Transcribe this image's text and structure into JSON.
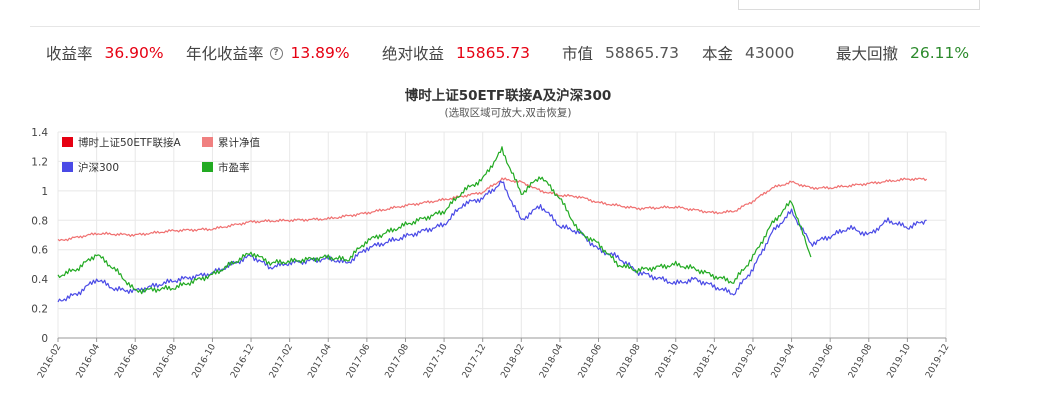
{
  "stats": [
    {
      "label": "收益率",
      "value": "36.90%",
      "color": "red"
    },
    {
      "label": "年化收益率",
      "value": "13.89%",
      "color": "red",
      "help": true
    },
    {
      "label": "绝对收益",
      "value": "15865.73",
      "color": "red"
    },
    {
      "label": "市值",
      "value": "58865.73",
      "color": "dark"
    },
    {
      "label": "本金",
      "value": "43000",
      "color": "dark"
    },
    {
      "label": "最大回撤",
      "value": "26.11%",
      "color": "green"
    }
  ],
  "help_icon": "?",
  "chart_data": {
    "type": "line",
    "title": "博时上证50ETF联接A及沪深300",
    "subtitle": "(选取区域可放大,双击恢复)",
    "ylim": [
      0,
      1.4
    ],
    "y_ticks": [
      "0",
      "0.2",
      "0.4",
      "0.6",
      "0.8",
      "1",
      "1.2",
      "1.4"
    ],
    "x_ticks": [
      "2016-02",
      "2016-04",
      "2016-06",
      "2016-08",
      "2016-10",
      "2016-12",
      "2017-02",
      "2017-04",
      "2017-06",
      "2017-08",
      "2017-10",
      "2017-12",
      "2018-02",
      "2018-04",
      "2018-06",
      "2018-08",
      "2018-10",
      "2018-12",
      "2019-02",
      "2019-04",
      "2019-06",
      "2019-08",
      "2019-10",
      "2019-12"
    ],
    "grid": true,
    "legend_position": "top-left",
    "legend": [
      {
        "name": "博时上证50ETF联接A",
        "color": "#e60012",
        "shows_line": false
      },
      {
        "name": "累计净值",
        "color": "#f08080",
        "shows_line": true
      },
      {
        "name": "沪深300",
        "color": "#4a4ae6",
        "shows_line": true
      },
      {
        "name": "市盈率",
        "color": "#22aa22",
        "shows_line": true
      }
    ],
    "series": [
      {
        "name": "累计净值",
        "color": "#f07070",
        "points": [
          [
            "2016-02",
            0.66
          ],
          [
            "2016-04",
            0.71
          ],
          [
            "2016-06",
            0.7
          ],
          [
            "2016-08",
            0.73
          ],
          [
            "2016-10",
            0.74
          ],
          [
            "2016-12",
            0.79
          ],
          [
            "2017-02",
            0.8
          ],
          [
            "2017-04",
            0.81
          ],
          [
            "2017-06",
            0.85
          ],
          [
            "2017-08",
            0.9
          ],
          [
            "2017-10",
            0.94
          ],
          [
            "2017-12",
            0.99
          ],
          [
            "2018-01",
            1.08
          ],
          [
            "2018-02",
            1.06
          ],
          [
            "2018-03",
            1.0
          ],
          [
            "2018-04",
            0.97
          ],
          [
            "2018-05",
            0.96
          ],
          [
            "2018-06",
            0.92
          ],
          [
            "2018-08",
            0.88
          ],
          [
            "2018-10",
            0.89
          ],
          [
            "2018-12",
            0.85
          ],
          [
            "2019-01",
            0.86
          ],
          [
            "2019-02",
            0.93
          ],
          [
            "2019-03",
            1.02
          ],
          [
            "2019-04",
            1.06
          ],
          [
            "2019-05",
            1.02
          ],
          [
            "2019-06",
            1.02
          ],
          [
            "2019-08",
            1.05
          ],
          [
            "2019-10",
            1.08
          ],
          [
            "2019-11",
            1.08
          ]
        ]
      },
      {
        "name": "沪深300",
        "color": "#4a4ae6",
        "points": [
          [
            "2016-02",
            0.25
          ],
          [
            "2016-03",
            0.3
          ],
          [
            "2016-04",
            0.4
          ],
          [
            "2016-05",
            0.33
          ],
          [
            "2016-06",
            0.32
          ],
          [
            "2016-08",
            0.39
          ],
          [
            "2016-10",
            0.44
          ],
          [
            "2016-12",
            0.56
          ],
          [
            "2017-01",
            0.48
          ],
          [
            "2017-02",
            0.51
          ],
          [
            "2017-04",
            0.54
          ],
          [
            "2017-05",
            0.51
          ],
          [
            "2017-06",
            0.61
          ],
          [
            "2017-08",
            0.69
          ],
          [
            "2017-10",
            0.77
          ],
          [
            "2017-11",
            0.91
          ],
          [
            "2017-12",
            0.95
          ],
          [
            "2018-01",
            1.06
          ],
          [
            "2018-02",
            0.8
          ],
          [
            "2018-03",
            0.9
          ],
          [
            "2018-04",
            0.76
          ],
          [
            "2018-05",
            0.72
          ],
          [
            "2018-06",
            0.6
          ],
          [
            "2018-07",
            0.55
          ],
          [
            "2018-08",
            0.45
          ],
          [
            "2018-10",
            0.37
          ],
          [
            "2018-11",
            0.4
          ],
          [
            "2018-12",
            0.35
          ],
          [
            "2019-01",
            0.3
          ],
          [
            "2019-02",
            0.47
          ],
          [
            "2019-03",
            0.72
          ],
          [
            "2019-04",
            0.86
          ],
          [
            "2019-05",
            0.64
          ],
          [
            "2019-06",
            0.69
          ],
          [
            "2019-07",
            0.75
          ],
          [
            "2019-08",
            0.7
          ],
          [
            "2019-09",
            0.8
          ],
          [
            "2019-10",
            0.75
          ],
          [
            "2019-11",
            0.8
          ]
        ]
      },
      {
        "name": "市盈率",
        "color": "#22aa22",
        "points": [
          [
            "2016-02",
            0.42
          ],
          [
            "2016-03",
            0.47
          ],
          [
            "2016-04",
            0.57
          ],
          [
            "2016-05",
            0.46
          ],
          [
            "2016-06",
            0.32
          ],
          [
            "2016-08",
            0.34
          ],
          [
            "2016-10",
            0.43
          ],
          [
            "2016-12",
            0.58
          ],
          [
            "2017-01",
            0.51
          ],
          [
            "2017-02",
            0.52
          ],
          [
            "2017-04",
            0.55
          ],
          [
            "2017-05",
            0.53
          ],
          [
            "2017-06",
            0.66
          ],
          [
            "2017-08",
            0.77
          ],
          [
            "2017-10",
            0.86
          ],
          [
            "2017-11",
            1.0
          ],
          [
            "2017-12",
            1.08
          ],
          [
            "2018-01",
            1.28
          ],
          [
            "2018-02",
            0.98
          ],
          [
            "2018-03",
            1.1
          ],
          [
            "2018-04",
            0.95
          ],
          [
            "2018-05",
            0.72
          ],
          [
            "2018-06",
            0.64
          ],
          [
            "2018-07",
            0.5
          ],
          [
            "2018-08",
            0.46
          ],
          [
            "2018-10",
            0.5
          ],
          [
            "2018-11",
            0.47
          ],
          [
            "2018-12",
            0.42
          ],
          [
            "2019-01",
            0.38
          ],
          [
            "2019-02",
            0.55
          ],
          [
            "2019-03",
            0.78
          ],
          [
            "2019-04",
            0.93
          ],
          [
            "2019-05",
            0.55
          ]
        ]
      }
    ]
  }
}
